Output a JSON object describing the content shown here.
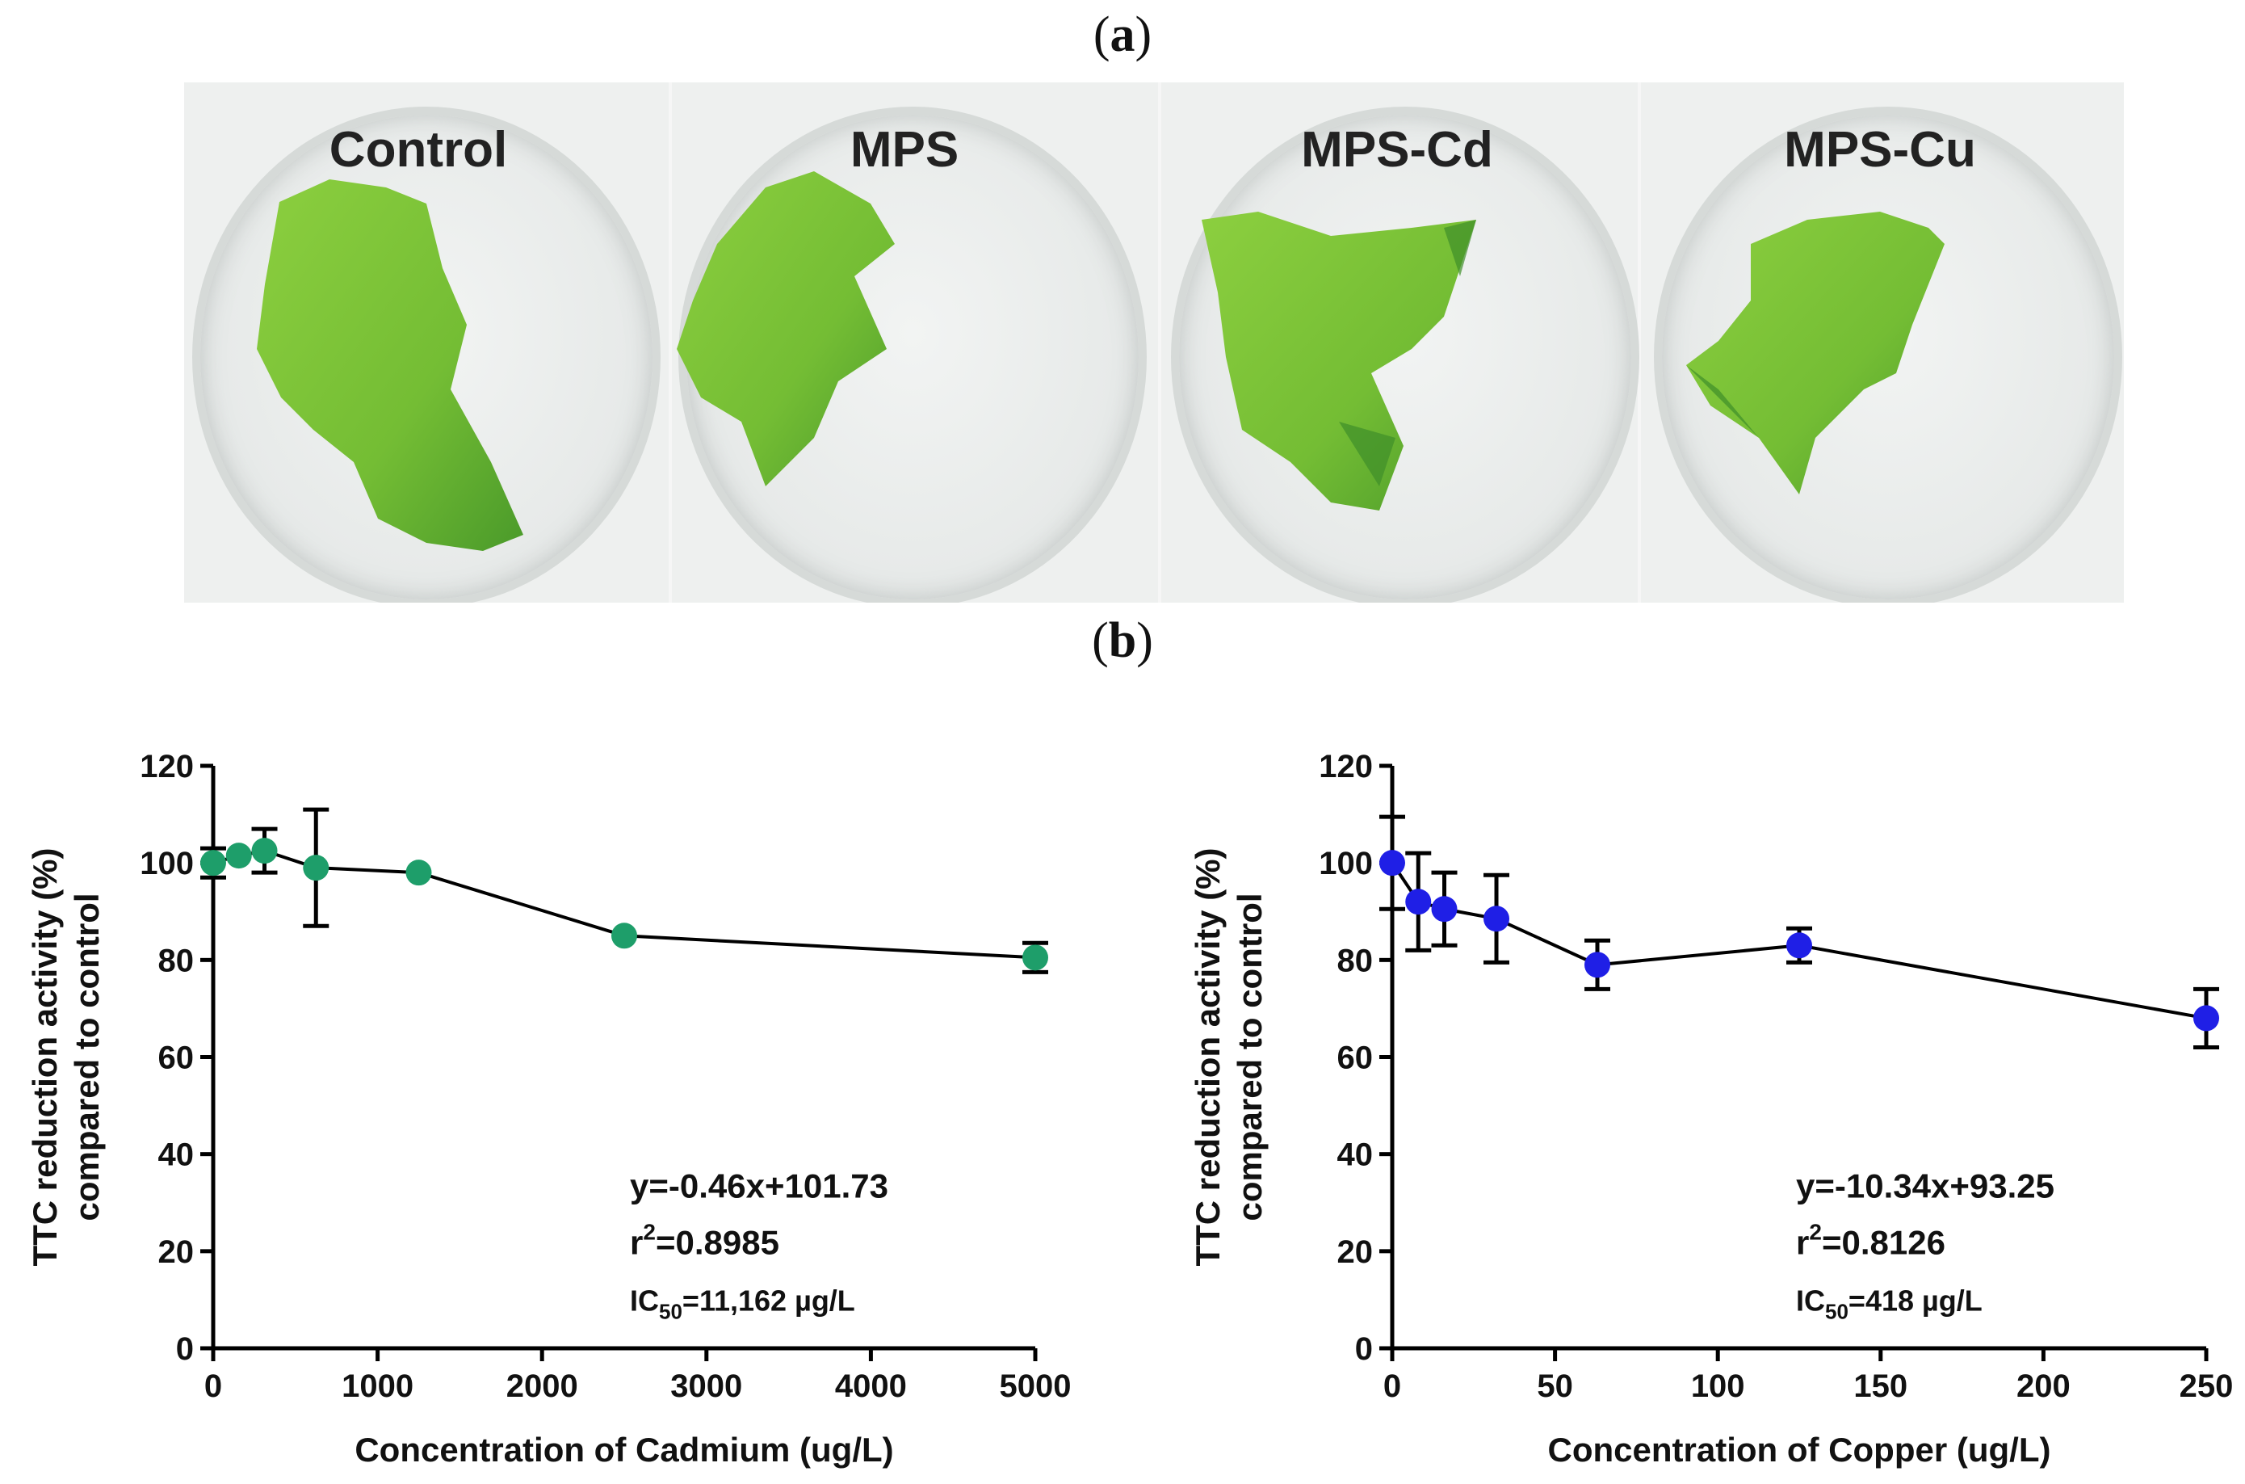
{
  "panel_a_label": "a",
  "panel_b_label": "b",
  "photo": {
    "dishes": [
      {
        "label": "Control"
      },
      {
        "label": "MPS"
      },
      {
        "label": "MPS-Cd"
      },
      {
        "label": "MPS-Cu"
      }
    ],
    "colors": {
      "seaweed": "#7dc436",
      "seaweed_dark": "#3e8f2a"
    }
  },
  "chart_data": [
    {
      "type": "line",
      "title": "",
      "xlabel": "Concentration of Cadmium (ug/L)",
      "ylabel_line1": "TTC reduction activity (%)",
      "ylabel_line2": "compared to control",
      "xlim": [
        0,
        5000
      ],
      "ylim": [
        0,
        120
      ],
      "xticks": [
        0,
        1000,
        2000,
        3000,
        4000,
        5000
      ],
      "yticks": [
        0,
        20,
        40,
        60,
        80,
        100,
        120
      ],
      "marker_color": "#1e9e6a",
      "points": [
        {
          "x": 0,
          "y": 100,
          "err": 3
        },
        {
          "x": 156,
          "y": 101.5,
          "err": 0
        },
        {
          "x": 312,
          "y": 102.5,
          "err": 4.5
        },
        {
          "x": 625,
          "y": 99,
          "err": 12
        },
        {
          "x": 1250,
          "y": 98,
          "err": 0
        },
        {
          "x": 2500,
          "y": 85,
          "err": 0
        },
        {
          "x": 5000,
          "y": 80.5,
          "err": 3
        }
      ],
      "equation": {
        "line1": "y=-0.46x+101.73",
        "r_prefix": "r",
        "r_sup": "2",
        "r_value": "=0.8985",
        "ic_prefix": "IC",
        "ic_sub": "50",
        "ic_value": "=11,162 µg/L"
      }
    },
    {
      "type": "line",
      "title": "",
      "xlabel": "Concentration of Copper (ug/L)",
      "ylabel_line1": "TTC reduction activity (%)",
      "ylabel_line2": "compared to control",
      "xlim": [
        0,
        250
      ],
      "ylim": [
        0,
        120
      ],
      "xticks": [
        0,
        50,
        100,
        150,
        200,
        250
      ],
      "yticks": [
        0,
        20,
        40,
        60,
        80,
        100,
        120
      ],
      "marker_color": "#1f1fe6",
      "points": [
        {
          "x": 0,
          "y": 100,
          "err": 9.5
        },
        {
          "x": 8,
          "y": 92,
          "err": 10
        },
        {
          "x": 16,
          "y": 90.5,
          "err": 7.5
        },
        {
          "x": 32,
          "y": 88.5,
          "err": 9
        },
        {
          "x": 63,
          "y": 79,
          "err": 5
        },
        {
          "x": 125,
          "y": 83,
          "err": 3.5
        },
        {
          "x": 250,
          "y": 68,
          "err": 6
        }
      ],
      "equation": {
        "line1": "y=-10.34x+93.25",
        "r_prefix": "r",
        "r_sup": "2",
        "r_value": "=0.8126",
        "ic_prefix": "IC",
        "ic_sub": "50",
        "ic_value": "=418 µg/L"
      }
    }
  ]
}
